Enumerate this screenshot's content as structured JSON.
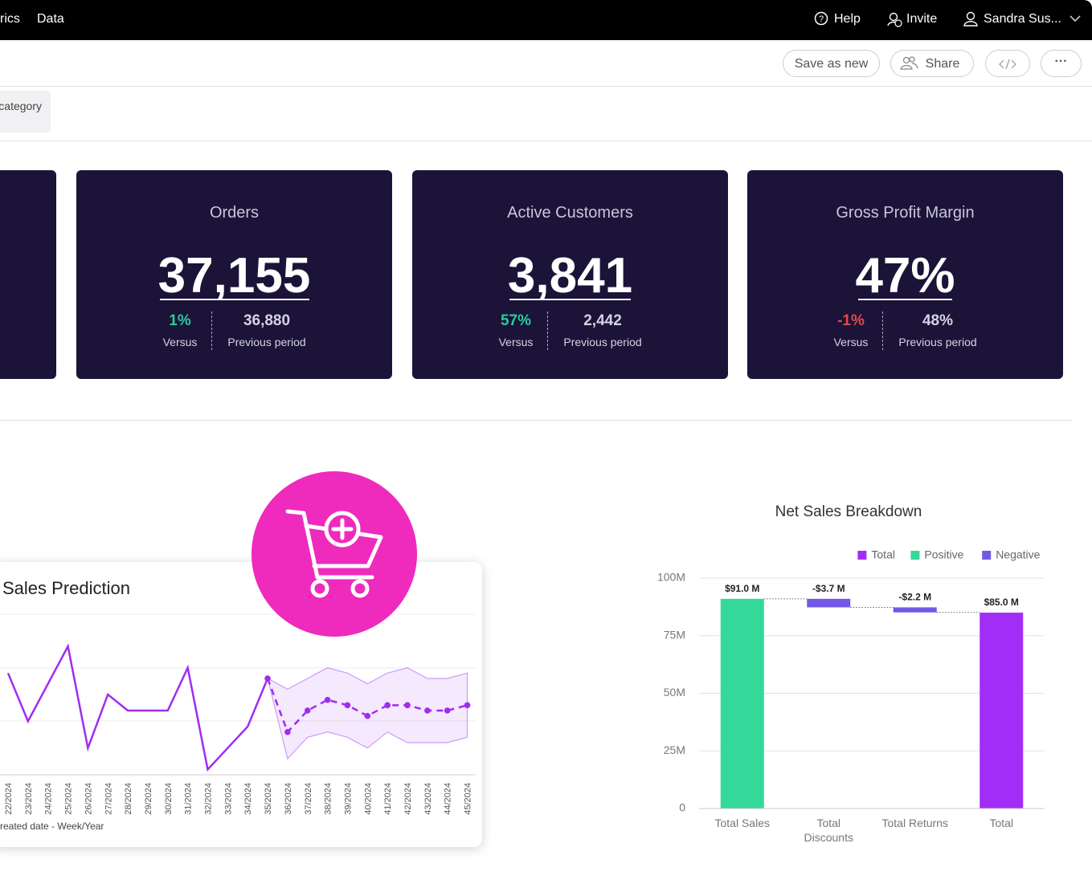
{
  "nav": {
    "items": [
      "rics",
      "Data"
    ],
    "help": "Help",
    "invite": "Invite",
    "user": "Sandra Sus..."
  },
  "toolbar": {
    "save": "Save as new",
    "share": "Share"
  },
  "filter": {
    "label": "category"
  },
  "kpis": [
    {
      "title": "Orders",
      "value": "37,155",
      "change": "1%",
      "change_label": "Versus",
      "previous": "36,880",
      "previous_label": "Previous period"
    },
    {
      "title": "Active Customers",
      "value": "3,841",
      "change": "57%",
      "change_label": "Versus",
      "previous": "2,442",
      "previous_label": "Previous period"
    },
    {
      "title": "Gross Profit Margin",
      "value": "47%",
      "change": "-1%",
      "change_label": "Versus",
      "previous": "48%",
      "previous_label": "Previous period"
    }
  ],
  "chart_data": [
    {
      "type": "line",
      "title": "Sales Prediction",
      "x_label": "reated date - Week/Year",
      "categories": [
        "22/2024",
        "23/2024",
        "24/2024",
        "25/2024",
        "26/2024",
        "27/2024",
        "28/2024",
        "29/2024",
        "30/2024",
        "31/2024",
        "32/2024",
        "33/2024",
        "34/2024",
        "35/2024",
        "36/2024",
        "37/2024",
        "38/2024",
        "39/2024",
        "40/2024",
        "41/2024",
        "42/2024",
        "43/2024",
        "44/2024",
        "45/2024"
      ],
      "ylim": [
        0,
        3
      ],
      "series": [
        {
          "color": "#a12cf0",
          "values": [
            1.9,
            1.0,
            1.7,
            2.4,
            0.5,
            1.5,
            1.2,
            1.2,
            1.2,
            2.0,
            0.1,
            0.5,
            0.9,
            1.8,
            null,
            null,
            null,
            null,
            null,
            null,
            null,
            null,
            null,
            null
          ]
        },
        {
          "color": "#a12cf0",
          "dashed": true,
          "markers": true,
          "values": [
            null,
            null,
            null,
            null,
            null,
            null,
            null,
            null,
            null,
            null,
            null,
            null,
            null,
            1.8,
            0.8,
            1.2,
            1.4,
            1.3,
            1.1,
            1.3,
            1.3,
            1.2,
            1.2,
            1.3
          ]
        }
      ],
      "band": {
        "color": "#a12cf0",
        "upper": [
          null,
          null,
          null,
          null,
          null,
          null,
          null,
          null,
          null,
          null,
          null,
          null,
          null,
          1.8,
          1.6,
          1.8,
          2.0,
          1.9,
          1.7,
          1.9,
          2.0,
          1.8,
          1.8,
          1.9
        ],
        "lower": [
          null,
          null,
          null,
          null,
          null,
          null,
          null,
          null,
          null,
          null,
          null,
          null,
          null,
          1.8,
          0.3,
          0.7,
          0.8,
          0.7,
          0.5,
          0.8,
          0.6,
          0.6,
          0.6,
          0.7
        ]
      }
    },
    {
      "type": "waterfall",
      "title": "Net Sales Breakdown",
      "categories": [
        "Total Sales",
        "Total Discounts",
        "Total Returns",
        "Total"
      ],
      "ylim": [
        0,
        100
      ],
      "yticks": [
        0,
        {
          "value": 25,
          "label": "25M"
        },
        {
          "value": 50,
          "label": "50M"
        },
        {
          "value": 75,
          "label": "75M"
        },
        {
          "value": 100,
          "label": "100M"
        }
      ],
      "grid": true,
      "legend": "top-right",
      "series": [
        {
          "name": "Total",
          "color": "#a22df6",
          "total": true,
          "values": [
            null,
            null,
            null,
            85.0
          ],
          "value_labels": [
            null,
            null,
            null,
            "$85.0 M"
          ]
        },
        {
          "name": "Positive",
          "color": "#34d99a",
          "values": [
            91.0,
            null,
            null,
            null
          ],
          "value_labels": [
            "$91.0 M",
            null,
            null,
            null
          ]
        },
        {
          "name": "Negative",
          "color": "#7358e6",
          "values": [
            null,
            -3.7,
            -2.2,
            null
          ],
          "value_labels": [
            null,
            "-$3.7 M",
            "-$2.2 M",
            null
          ]
        }
      ]
    }
  ]
}
